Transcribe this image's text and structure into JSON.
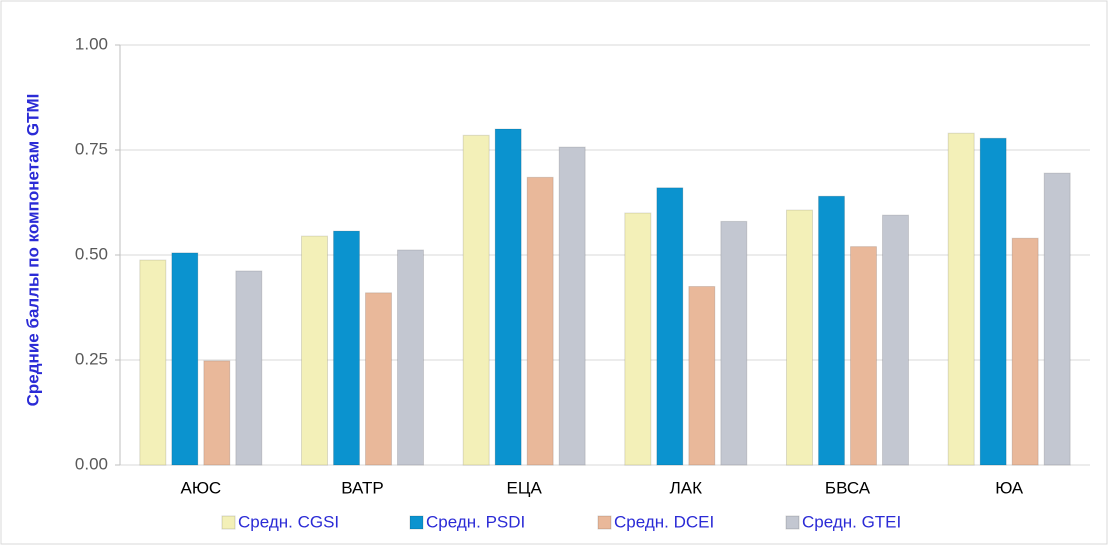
{
  "chart_data": {
    "type": "bar",
    "y_label": "Средние баллы по компонетам GTMI",
    "categories": [
      "АЮС",
      "ВАТР",
      "ЕЦА",
      "ЛАК",
      "БВСА",
      "ЮА"
    ],
    "series": [
      {
        "name": "Средн. CGSI",
        "color": "#f3f0b8",
        "values": [
          0.488,
          0.545,
          0.785,
          0.6,
          0.607,
          0.79
        ]
      },
      {
        "name": "Средн. PSDI",
        "color": "#0b93cf",
        "values": [
          0.505,
          0.557,
          0.8,
          0.66,
          0.64,
          0.778
        ]
      },
      {
        "name": "Средн. DCEI",
        "color": "#e9b89a",
        "values": [
          0.248,
          0.41,
          0.685,
          0.425,
          0.52,
          0.54
        ]
      },
      {
        "name": "Средн. GTEI",
        "color": "#c3c7d1",
        "values": [
          0.462,
          0.512,
          0.757,
          0.58,
          0.595,
          0.695
        ]
      }
    ],
    "ylim": [
      0,
      1
    ],
    "yticks": [
      {
        "value": 0,
        "label": "0.00"
      },
      0.25,
      {
        "value": 0.5,
        "label": "0.50"
      },
      0.75,
      {
        "value": 1,
        "label": "1.00"
      }
    ],
    "grid": true,
    "legend": "bottom"
  }
}
